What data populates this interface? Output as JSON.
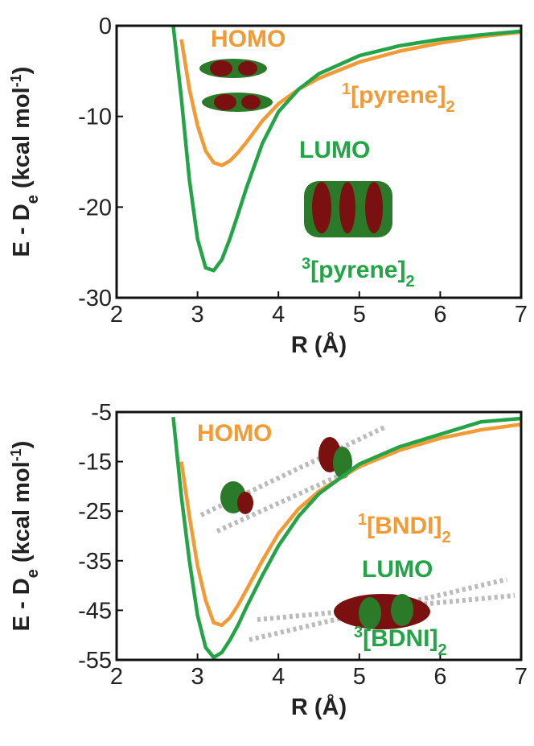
{
  "chart_data": [
    {
      "type": "line",
      "ylabel": [
        "E - D",
        "e",
        " (kcal mol",
        "-1",
        ")"
      ],
      "xlabel": "R (Å)",
      "annotations": [
        [
          "HOMO"
        ],
        [
          "1",
          "[pyrene]",
          "2"
        ],
        [
          "LUMO"
        ],
        [
          "3",
          "[pyrene]",
          "2"
        ]
      ],
      "x": [
        2.7,
        2.8,
        2.9,
        3.0,
        3.1,
        3.2,
        3.3,
        3.4,
        3.5,
        3.6,
        3.8,
        4.0,
        4.25,
        4.5,
        5.0,
        5.5,
        6.0,
        6.5,
        7.0
      ],
      "series": [
        {
          "color": "#f39a34",
          "values": [
            null,
            -1.5,
            -7,
            -11,
            -13.8,
            -15.1,
            -15.4,
            -14.9,
            -14,
            -12.9,
            -10.5,
            -8.6,
            -7,
            -5.8,
            -4,
            -2.8,
            -1.9,
            -1.2,
            -0.7
          ]
        },
        {
          "color": "#22a447",
          "values": [
            0,
            -8,
            -17,
            -23.5,
            -26.7,
            -27,
            -25.8,
            -23.5,
            -20.8,
            -18,
            -13,
            -9.5,
            -7,
            -5.3,
            -3.3,
            -2.2,
            -1.5,
            -1,
            -0.6
          ]
        }
      ],
      "xlim": [
        2,
        7
      ],
      "xticks": [
        2,
        3,
        4,
        5,
        6,
        7
      ],
      "ylim": [
        -30,
        0
      ],
      "yticks": [
        0,
        -10,
        -20,
        -30
      ]
    },
    {
      "type": "line",
      "ylabel": [
        "E - D",
        "e",
        " (kcal mol",
        "-1",
        ")"
      ],
      "xlabel": "R (Å)",
      "annotations": [
        [
          "HOMO"
        ],
        [
          "1",
          "[BNDI]",
          "2"
        ],
        [
          "LUMO"
        ],
        [
          "3",
          "[BDNI]",
          "2"
        ]
      ],
      "x": [
        2.7,
        2.8,
        2.9,
        3.0,
        3.1,
        3.2,
        3.3,
        3.4,
        3.5,
        3.6,
        3.8,
        4.0,
        4.25,
        4.5,
        5.0,
        5.5,
        6.0,
        6.5,
        7.0
      ],
      "series": [
        {
          "color": "#f39a34",
          "values": [
            null,
            -15,
            -26,
            -36,
            -43,
            -47.5,
            -48,
            -46.5,
            -44,
            -41,
            -35,
            -29.5,
            -24.5,
            -21,
            -16,
            -12.7,
            -10.3,
            -8.6,
            -7.5
          ]
        },
        {
          "color": "#22a447",
          "values": [
            -6,
            -22,
            -35,
            -46,
            -52.5,
            -54.5,
            -53.5,
            -51,
            -48,
            -44.5,
            -38,
            -32,
            -26,
            -21.5,
            -15.5,
            -12,
            -9.5,
            -7,
            -6.3
          ]
        }
      ],
      "xlim": [
        2,
        7
      ],
      "xticks": [
        2,
        3,
        4,
        5,
        6,
        7
      ],
      "ylim": [
        -55,
        -5
      ],
      "yticks": [
        -5,
        -15,
        -25,
        -35,
        -45,
        -55
      ]
    }
  ]
}
